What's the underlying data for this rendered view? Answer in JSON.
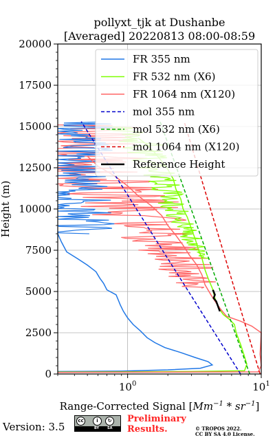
{
  "chart_data": {
    "type": "line",
    "title_line1": "pollyxt_tjk at Dushanbe",
    "title_line2": "[Averaged] 20220813 08:00-08:59",
    "xlabel_prefix": "Range-Corrected Signal [",
    "xlabel_unit_a": "Mm",
    "xlabel_exp_a": "−1",
    "xlabel_mid": " * ",
    "xlabel_unit_b": "sr",
    "xlabel_exp_b": "−1",
    "xlabel_suffix": "]",
    "ylabel": "Height (m)",
    "x_scale": "log",
    "xlim": [
      0.3,
      10
    ],
    "ylim": [
      0,
      20000
    ],
    "y_ticks": [
      "0",
      "2500",
      "5000",
      "7500",
      "10000",
      "12500",
      "15000",
      "17500",
      "20000"
    ],
    "x_ticks": [
      {
        "base": "10",
        "exp": "0",
        "value": 1
      },
      {
        "base": "10",
        "exp": "1",
        "value": 10
      }
    ],
    "grid": true,
    "legend_position": "top-right",
    "series": [
      {
        "name": "FR 355 nm",
        "color": "#1f77e6",
        "style": "solid",
        "points": [
          [
            0.3,
            150
          ],
          [
            0.9,
            180
          ],
          [
            2.0,
            250
          ],
          [
            3.5,
            350
          ],
          [
            4.3,
            550
          ],
          [
            4.0,
            750
          ],
          [
            3.2,
            1000
          ],
          [
            2.5,
            1300
          ],
          [
            1.9,
            1600
          ],
          [
            1.6,
            1900
          ],
          [
            1.4,
            2200
          ],
          [
            1.25,
            2600
          ],
          [
            1.1,
            3000
          ],
          [
            1.0,
            3400
          ],
          [
            0.93,
            3800
          ],
          [
            0.88,
            4200
          ],
          [
            0.85,
            4500
          ],
          [
            0.82,
            4800
          ],
          [
            0.7,
            5100
          ],
          [
            0.66,
            5500
          ],
          [
            0.62,
            5800
          ],
          [
            0.58,
            6200
          ],
          [
            0.5,
            6600
          ],
          [
            0.42,
            7000
          ],
          [
            0.35,
            7400
          ],
          [
            0.32,
            8000
          ],
          [
            0.3,
            8500
          ]
        ]
      },
      {
        "name": "FR 532 nm (X6)",
        "color": "#7fff00",
        "style": "solid",
        "points": [
          [
            0.3,
            120
          ],
          [
            3.0,
            150
          ],
          [
            7.5,
            200
          ],
          [
            7.8,
            600
          ],
          [
            7.4,
            1200
          ],
          [
            7.0,
            1800
          ],
          [
            6.5,
            2500
          ],
          [
            6.3,
            3000
          ],
          [
            5.8,
            3300
          ],
          [
            5.2,
            3600
          ],
          [
            4.8,
            4000
          ],
          [
            4.5,
            4600
          ],
          [
            4.3,
            5200
          ],
          [
            4.0,
            5800
          ],
          [
            3.8,
            6300
          ],
          [
            3.6,
            7000
          ],
          [
            3.4,
            7500
          ],
          [
            3.2,
            8200
          ],
          [
            3.0,
            8800
          ],
          [
            2.8,
            9500
          ],
          [
            2.6,
            10000
          ],
          [
            2.5,
            10600
          ],
          [
            2.3,
            11200
          ],
          [
            2.2,
            11800
          ],
          [
            2.0,
            12400
          ],
          [
            1.8,
            12900
          ],
          [
            1.6,
            13400
          ],
          [
            1.4,
            13900
          ],
          [
            1.2,
            14300
          ]
        ]
      },
      {
        "name": "FR 1064 nm (X120)",
        "color": "#ff6666",
        "style": "solid",
        "points": [
          [
            0.3,
            100
          ],
          [
            9.5,
            130
          ],
          [
            10,
            500
          ],
          [
            9.8,
            1200
          ],
          [
            10,
            2500
          ],
          [
            8.5,
            2900
          ],
          [
            7.0,
            3200
          ],
          [
            5.5,
            3500
          ],
          [
            5.0,
            3900
          ],
          [
            4.6,
            4300
          ],
          [
            4.2,
            4800
          ],
          [
            3.8,
            5400
          ],
          [
            3.6,
            6000
          ],
          [
            3.3,
            6600
          ],
          [
            2.9,
            7200
          ],
          [
            2.6,
            7800
          ],
          [
            2.3,
            8400
          ],
          [
            2.0,
            9000
          ],
          [
            1.8,
            9600
          ],
          [
            1.5,
            10200
          ],
          [
            1.2,
            10800
          ],
          [
            1.0,
            11400
          ],
          [
            0.8,
            12000
          ],
          [
            0.6,
            12600
          ],
          [
            0.5,
            13200
          ]
        ]
      },
      {
        "name": "mol 355 nm",
        "color": "#0000cc",
        "style": "dashed",
        "points": [
          [
            7.0,
            0
          ],
          [
            0.45,
            15300
          ]
        ]
      },
      {
        "name": "mol 532 nm (X6)",
        "color": "#00aa00",
        "style": "dashed",
        "points": [
          [
            8.2,
            0
          ],
          [
            1.75,
            15300
          ]
        ]
      },
      {
        "name": "mol 1064 nm (X120)",
        "color": "#dd0000",
        "style": "dashed",
        "points": [
          [
            9.8,
            0
          ],
          [
            2.65,
            15300
          ]
        ]
      },
      {
        "name": "Reference Height",
        "color": "#000000",
        "style": "solid",
        "points": [
          [
            4.35,
            5100
          ],
          [
            4.5,
            4800
          ],
          [
            4.4,
            4600
          ],
          [
            4.6,
            4400
          ],
          [
            4.7,
            4200
          ],
          [
            4.8,
            4000
          ],
          [
            4.9,
            3800
          ]
        ]
      }
    ]
  },
  "footer": {
    "version": "Version: 3.5",
    "cc_by": "BY",
    "cc_sa": "SA",
    "prelim_line1": "Preliminary",
    "prelim_line2": "Results.",
    "license_line1": "© TROPOS 2022.",
    "license_line2": "CC BY SA 4.0 License."
  }
}
